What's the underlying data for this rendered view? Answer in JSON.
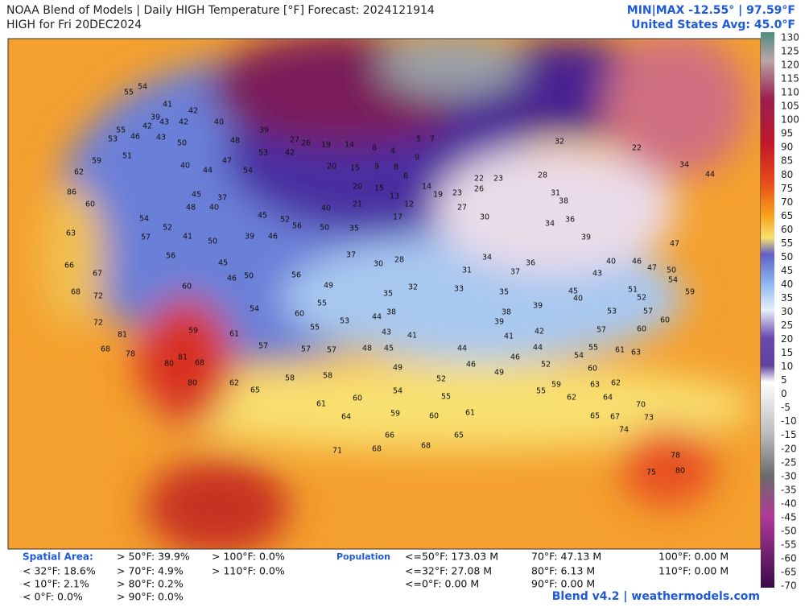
{
  "header": {
    "title": "NOAA Blend of Models | Daily HIGH Temperature [°F] Forecast: 2024121914",
    "subtitle": "HIGH for Fri 20DEC2024",
    "minmax": "MIN|MAX -12.55° | 97.59°F",
    "us_avg": "United States Avg: 45.0°F"
  },
  "colorbar": {
    "ticks": [
      130,
      125,
      120,
      115,
      110,
      105,
      100,
      95,
      90,
      85,
      80,
      75,
      70,
      65,
      60,
      55,
      50,
      45,
      40,
      35,
      30,
      25,
      20,
      15,
      10,
      5,
      0,
      -5,
      -10,
      -15,
      -20,
      -25,
      -30,
      -35,
      -40,
      -45,
      -50,
      -55,
      -60,
      -65,
      -70
    ]
  },
  "stations": [
    55,
    54,
    41,
    42,
    39,
    43,
    42,
    40,
    42,
    39,
    55,
    53,
    46,
    43,
    48,
    53,
    54,
    51,
    50,
    47,
    42,
    27,
    26,
    19,
    14,
    8,
    4,
    5,
    7,
    9,
    20,
    15,
    9,
    8,
    6,
    20,
    15,
    13,
    12,
    14,
    19,
    21,
    17,
    23,
    22,
    32,
    22,
    34,
    44,
    40,
    35,
    30,
    28,
    37,
    35,
    32,
    33,
    38,
    44,
    43,
    41,
    45,
    49,
    52,
    54,
    55,
    60,
    59,
    60,
    61,
    65,
    66,
    68,
    68,
    64,
    71,
    58,
    62,
    65,
    61,
    58,
    57,
    48,
    46,
    49,
    44,
    55,
    59,
    60,
    62,
    65,
    67,
    70,
    73,
    74,
    78,
    80,
    75,
    81,
    78,
    80,
    81,
    68,
    80,
    72,
    67,
    68,
    72,
    68,
    60,
    59,
    61,
    57,
    57,
    55,
    53,
    54,
    60,
    55,
    56,
    49,
    50,
    46,
    45,
    39,
    46,
    56,
    50,
    45,
    52,
    45,
    48,
    40,
    37,
    54,
    52,
    57,
    56,
    41,
    50,
    44,
    40,
    62,
    59,
    60,
    63,
    86,
    66,
    47,
    50,
    54,
    59,
    60,
    57,
    53,
    52,
    51,
    38,
    39,
    40,
    45,
    43,
    40,
    46,
    47,
    39,
    36,
    34,
    38,
    31,
    26,
    23,
    28,
    30,
    27,
    31,
    34,
    36,
    37,
    35,
    39,
    41,
    42,
    44,
    46,
    52,
    54,
    55,
    57,
    60,
    61,
    63,
    64,
    62,
    63
  ],
  "spatial_area": {
    "label": "Spatial Area:",
    "items": [
      "> 50°F: 39.9%",
      "> 100°F: 0.0%",
      "< 32°F: 18.6%",
      "> 70°F: 4.9%",
      "> 110°F: 0.0%",
      "< 10°F: 2.1%",
      "> 80°F: 0.2%",
      "< 0°F: 0.0%",
      "> 90°F: 0.0%"
    ]
  },
  "population": {
    "label": "Population",
    "items": [
      "<=50°F: 173.03 M",
      "<=32°F: 27.08 M",
      "<=0°F: 0.00 M",
      "70°F: 47.13 M",
      "80°F: 6.13 M",
      "90°F: 0.00 M",
      "100°F: 0.00 M",
      "110°F: 0.00 M"
    ]
  },
  "footer": "Blend v4.2 | weathermodels.com"
}
